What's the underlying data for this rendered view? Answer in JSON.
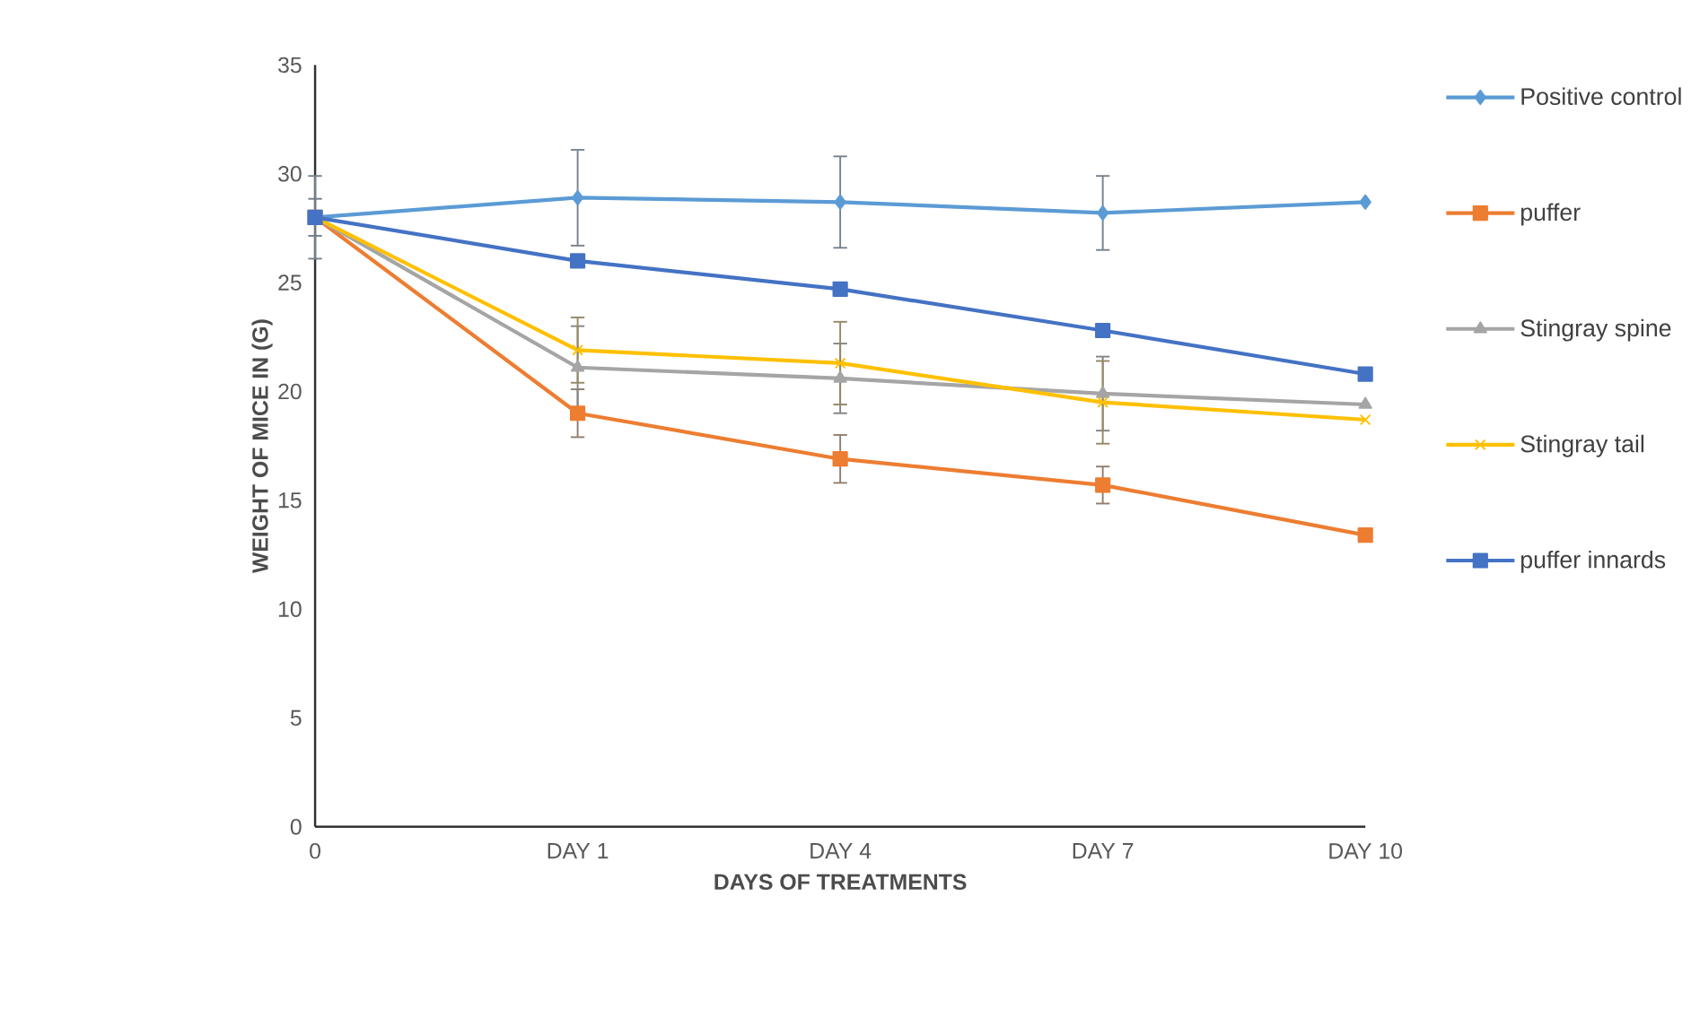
{
  "chart_data": {
    "type": "line",
    "xlabel": "DAYS OF TREATMENTS",
    "ylabel": "WEIGHT OF MICE  IN (G)",
    "categories": [
      "0",
      "DAY 1",
      "DAY 4",
      "DAY 7",
      "DAY 10"
    ],
    "ylim": [
      0,
      35
    ],
    "yticks": [
      0,
      5,
      10,
      15,
      20,
      25,
      30,
      35
    ],
    "grid": false,
    "legend": "right",
    "series": [
      {
        "name": "Positive control",
        "color": "#5b9bd5",
        "marker": "diamond",
        "values": [
          28,
          28.9,
          28.7,
          28.2,
          28.7
        ],
        "errors": [
          1.9,
          2.2,
          2.1,
          1.7,
          null
        ]
      },
      {
        "name": "puffer",
        "color": "#ed7d31",
        "marker": "square",
        "values": [
          28,
          19.0,
          16.9,
          15.7,
          13.4
        ],
        "errors": [
          null,
          1.1,
          1.1,
          0.85,
          null
        ]
      },
      {
        "name": "Stingray spine",
        "color": "#a5a5a5",
        "marker": "triangle",
        "values": [
          28,
          21.1,
          20.6,
          19.9,
          19.4
        ],
        "errors": [
          null,
          1.9,
          1.6,
          1.7,
          null
        ]
      },
      {
        "name": "Stingray tail",
        "color": "#ffc000",
        "marker": "cross",
        "values": [
          28,
          21.9,
          21.3,
          19.5,
          18.7
        ],
        "errors": [
          null,
          1.5,
          1.9,
          1.9,
          null
        ]
      },
      {
        "name": "puffer innards",
        "color": "#4472c4",
        "marker": "square",
        "values": [
          28,
          26.0,
          24.7,
          22.8,
          20.8
        ],
        "errors": [
          0.85,
          null,
          null,
          null,
          null
        ]
      }
    ]
  }
}
